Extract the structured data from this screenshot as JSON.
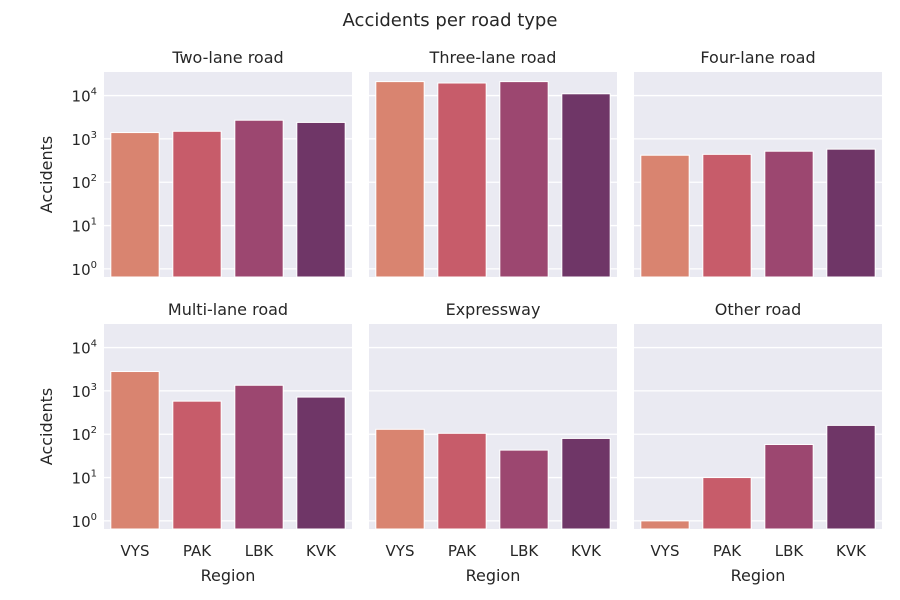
{
  "chart_data": {
    "type": "bar",
    "title": "Accidents per road type",
    "xlabel": "Region",
    "ylabel": "Accidents",
    "yscale": "log",
    "ylim": [
      0.65,
      35000
    ],
    "yticks": [
      1,
      10,
      100,
      1000,
      10000
    ],
    "grid": true,
    "layout": "2 rows x 3 columns, shared x and y axes",
    "categories": [
      "VYS",
      "PAK",
      "LBK",
      "KVK"
    ],
    "colors": [
      "#d98470",
      "#c75c6a",
      "#9c4770",
      "#6f3667"
    ],
    "panels": [
      {
        "title": "Two-lane road",
        "values": [
          1400,
          1500,
          2700,
          2400
        ]
      },
      {
        "title": "Three-lane road",
        "values": [
          21000,
          19500,
          21000,
          11000
        ]
      },
      {
        "title": "Four-lane road",
        "values": [
          420,
          440,
          520,
          580
        ]
      },
      {
        "title": "Multi-lane road",
        "values": [
          2800,
          580,
          1350,
          720
        ]
      },
      {
        "title": "Expressway",
        "values": [
          130,
          105,
          43,
          80
        ]
      },
      {
        "title": "Other road",
        "values": [
          1,
          10,
          58,
          160
        ]
      }
    ]
  }
}
